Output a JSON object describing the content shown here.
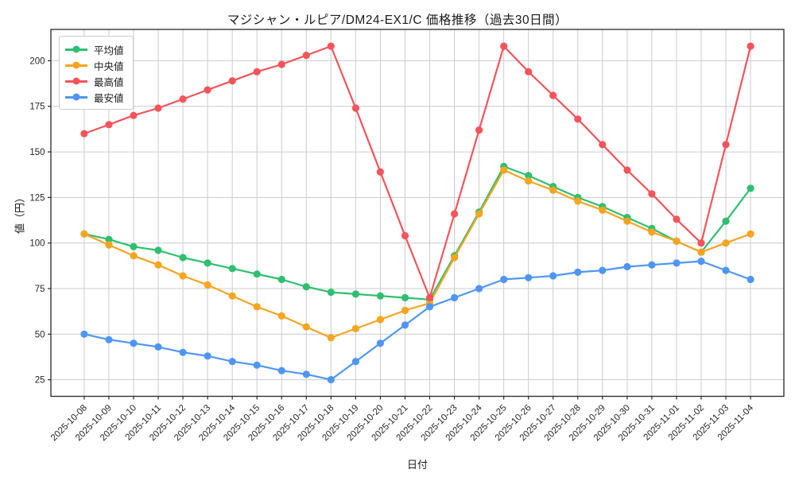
{
  "chart_data": {
    "type": "line",
    "title": "マジシャン・ルピア/DM24-EX1/C 価格推移（過去30日間）",
    "xlabel": "日付",
    "ylabel": "値（円）",
    "grid": true,
    "legend_position": "upper left",
    "yticks": [
      25,
      50,
      75,
      100,
      125,
      150,
      175,
      200
    ],
    "ylim": [
      15.9,
      217.2
    ],
    "xlim": [
      -1.35,
      28.35
    ],
    "categories": [
      "2025-10-08",
      "2025-10-09",
      "2025-10-10",
      "2025-10-11",
      "2025-10-12",
      "2025-10-13",
      "2025-10-14",
      "2025-10-15",
      "2025-10-16",
      "2025-10-17",
      "2025-10-18",
      "2025-10-19",
      "2025-10-20",
      "2025-10-21",
      "2025-10-22",
      "2025-10-23",
      "2025-10-24",
      "2025-10-25",
      "2025-10-26",
      "2025-10-27",
      "2025-10-28",
      "2025-10-29",
      "2025-10-30",
      "2025-10-31",
      "2025-11-01",
      "2025-11-02",
      "2025-11-03",
      "2025-11-04"
    ],
    "series": [
      {
        "name": "平均値",
        "color": "#2EBF6F",
        "values": [
          105,
          102,
          98,
          96,
          92,
          89,
          86,
          83,
          80,
          76,
          73,
          72,
          71,
          70,
          69,
          93,
          117,
          142,
          137,
          131,
          125,
          120,
          114,
          108,
          101,
          95,
          112,
          130
        ]
      },
      {
        "name": "中央値",
        "color": "#F7A41F",
        "values": [
          105,
          99,
          93,
          88,
          82,
          77,
          71,
          65,
          60,
          54,
          48,
          53,
          58,
          63,
          67,
          92,
          116,
          140,
          134,
          129,
          123,
          118,
          112,
          106,
          101,
          95,
          100,
          105
        ]
      },
      {
        "name": "最高値",
        "color": "#F6535A",
        "values": [
          160,
          165,
          170,
          174,
          179,
          184,
          189,
          194,
          198,
          203,
          208,
          174,
          139,
          104,
          70,
          116,
          162,
          208,
          194,
          181,
          168,
          154,
          140,
          127,
          113,
          100,
          154,
          208
        ]
      },
      {
        "name": "最安値",
        "color": "#4E96F5",
        "values": [
          50,
          47,
          45,
          43,
          40,
          38,
          35,
          33,
          30,
          28,
          25,
          35,
          45,
          55,
          65,
          70,
          75,
          80,
          81,
          82,
          84,
          85,
          87,
          88,
          89,
          90,
          85,
          80
        ]
      }
    ],
    "style": {
      "grid_color": "#cccccc",
      "spine_color": "#262626",
      "tick_label_color": "#262626",
      "background": "#ffffff"
    }
  }
}
